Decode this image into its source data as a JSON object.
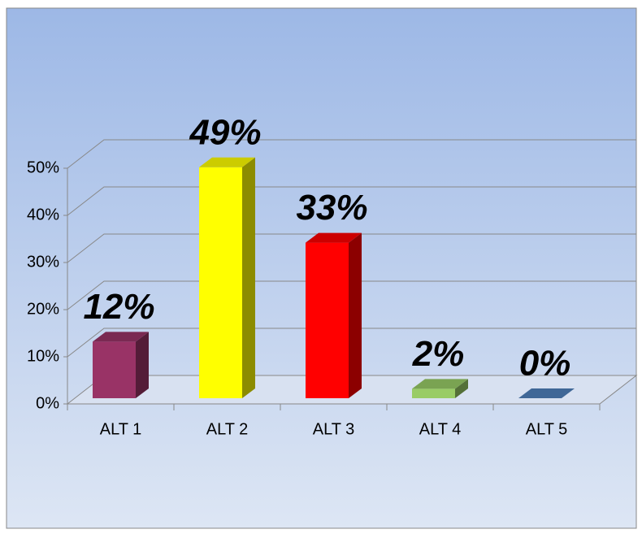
{
  "chart_data": {
    "type": "bar",
    "categories": [
      "ALT 1",
      "ALT 2",
      "ALT 3",
      "ALT 4",
      "ALT 5"
    ],
    "values": [
      12,
      49,
      33,
      2,
      0
    ],
    "value_labels": [
      "12%",
      "49%",
      "33%",
      "2%",
      "0%"
    ],
    "colors": [
      "#993366",
      "#ffff00",
      "#ff0000",
      "#99cc66",
      "#4f81bd"
    ],
    "ylim": [
      0,
      50
    ],
    "yticks": [
      {
        "value": 0,
        "label": "0%"
      },
      {
        "value": 10,
        "label": "10%"
      },
      {
        "value": 20,
        "label": "20%"
      },
      {
        "value": 30,
        "label": "30%"
      },
      {
        "value": 40,
        "label": "40%"
      },
      {
        "value": 50,
        "label": "50%"
      }
    ],
    "grid": true
  }
}
